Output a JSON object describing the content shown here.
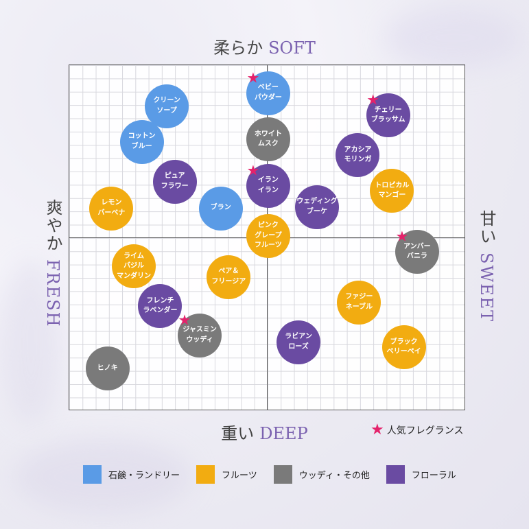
{
  "chart_data": {
    "type": "scatter",
    "axes": {
      "top": {
        "ja": "柔らか",
        "en": "SOFT"
      },
      "bottom": {
        "ja": "重い",
        "en": "DEEP"
      },
      "left": {
        "ja": "爽やか",
        "en": "FRESH"
      },
      "right": {
        "ja": "甘い",
        "en": "SWEET"
      }
    },
    "xlim": [
      -15,
      15
    ],
    "ylim": [
      -13,
      13
    ],
    "grid": true,
    "categories": [
      {
        "key": "soap",
        "label": "石鹸・ランドリー",
        "color": "#5a9be6"
      },
      {
        "key": "fruit",
        "label": "フルーツ",
        "color": "#f2ac11"
      },
      {
        "key": "woody",
        "label": "ウッディ・その他",
        "color": "#7a7a7a"
      },
      {
        "key": "floral",
        "label": "フローラル",
        "color": "#6a4ba2"
      }
    ],
    "popular_label": "人気フレグランス",
    "points": [
      {
        "label": "ベビー\nパウダー",
        "x": 0.1,
        "y": 10.9,
        "category": "soap",
        "popular": true
      },
      {
        "label": "クリーン\nソープ",
        "x": -7.6,
        "y": 9.9,
        "category": "soap",
        "popular": false
      },
      {
        "label": "コットン\nブルー",
        "x": -9.5,
        "y": 7.2,
        "category": "soap",
        "popular": false
      },
      {
        "label": "ブラン",
        "x": -3.5,
        "y": 2.2,
        "category": "soap",
        "popular": false
      },
      {
        "label": "ホワイト\nムスク",
        "x": 0.1,
        "y": 7.4,
        "category": "woody",
        "popular": false
      },
      {
        "label": "チェリー\nブラッサム",
        "x": 9.2,
        "y": 9.2,
        "category": "floral",
        "popular": true
      },
      {
        "label": "アカシア\nモリンガ",
        "x": 6.9,
        "y": 6.2,
        "category": "floral",
        "popular": false
      },
      {
        "label": "ピュア\nフラワー",
        "x": -7.0,
        "y": 4.2,
        "category": "floral",
        "popular": false
      },
      {
        "label": "イラン\nイラン",
        "x": 0.1,
        "y": 3.9,
        "category": "floral",
        "popular": true
      },
      {
        "label": "トロピカル\nマンゴー",
        "x": 9.5,
        "y": 3.5,
        "category": "fruit",
        "popular": false
      },
      {
        "label": "レモン\nバーベナ",
        "x": -11.8,
        "y": 2.2,
        "category": "fruit",
        "popular": false
      },
      {
        "label": "ウェディング\nブーケ",
        "x": 3.8,
        "y": 2.3,
        "category": "floral",
        "popular": false
      },
      {
        "label": "ピンク\nグレープ\nフルーツ",
        "x": 0.1,
        "y": 0.1,
        "category": "fruit",
        "popular": false
      },
      {
        "label": "アンバー\nバニラ",
        "x": 11.4,
        "y": -1.1,
        "category": "woody",
        "popular": true
      },
      {
        "label": "ライム\nバジル\nマンダリン",
        "x": -10.1,
        "y": -2.2,
        "category": "fruit",
        "popular": false
      },
      {
        "label": "ペア＆\nフリージア",
        "x": -2.9,
        "y": -3.0,
        "category": "fruit",
        "popular": false
      },
      {
        "label": "フレンチ\nラベンダー",
        "x": -8.1,
        "y": -5.2,
        "category": "floral",
        "popular": false
      },
      {
        "label": "ファジー\nネーブル",
        "x": 7.0,
        "y": -4.9,
        "category": "fruit",
        "popular": false
      },
      {
        "label": "ジャスミン\nウッディ",
        "x": -5.1,
        "y": -7.4,
        "category": "woody",
        "popular": true
      },
      {
        "label": "ラビアン\nローズ",
        "x": 2.4,
        "y": -7.9,
        "category": "floral",
        "popular": false
      },
      {
        "label": "ブラック\nベリーペイ",
        "x": 10.4,
        "y": -8.3,
        "category": "fruit",
        "popular": false
      },
      {
        "label": "ヒノキ",
        "x": -12.1,
        "y": -9.9,
        "category": "woody",
        "popular": false
      }
    ]
  }
}
